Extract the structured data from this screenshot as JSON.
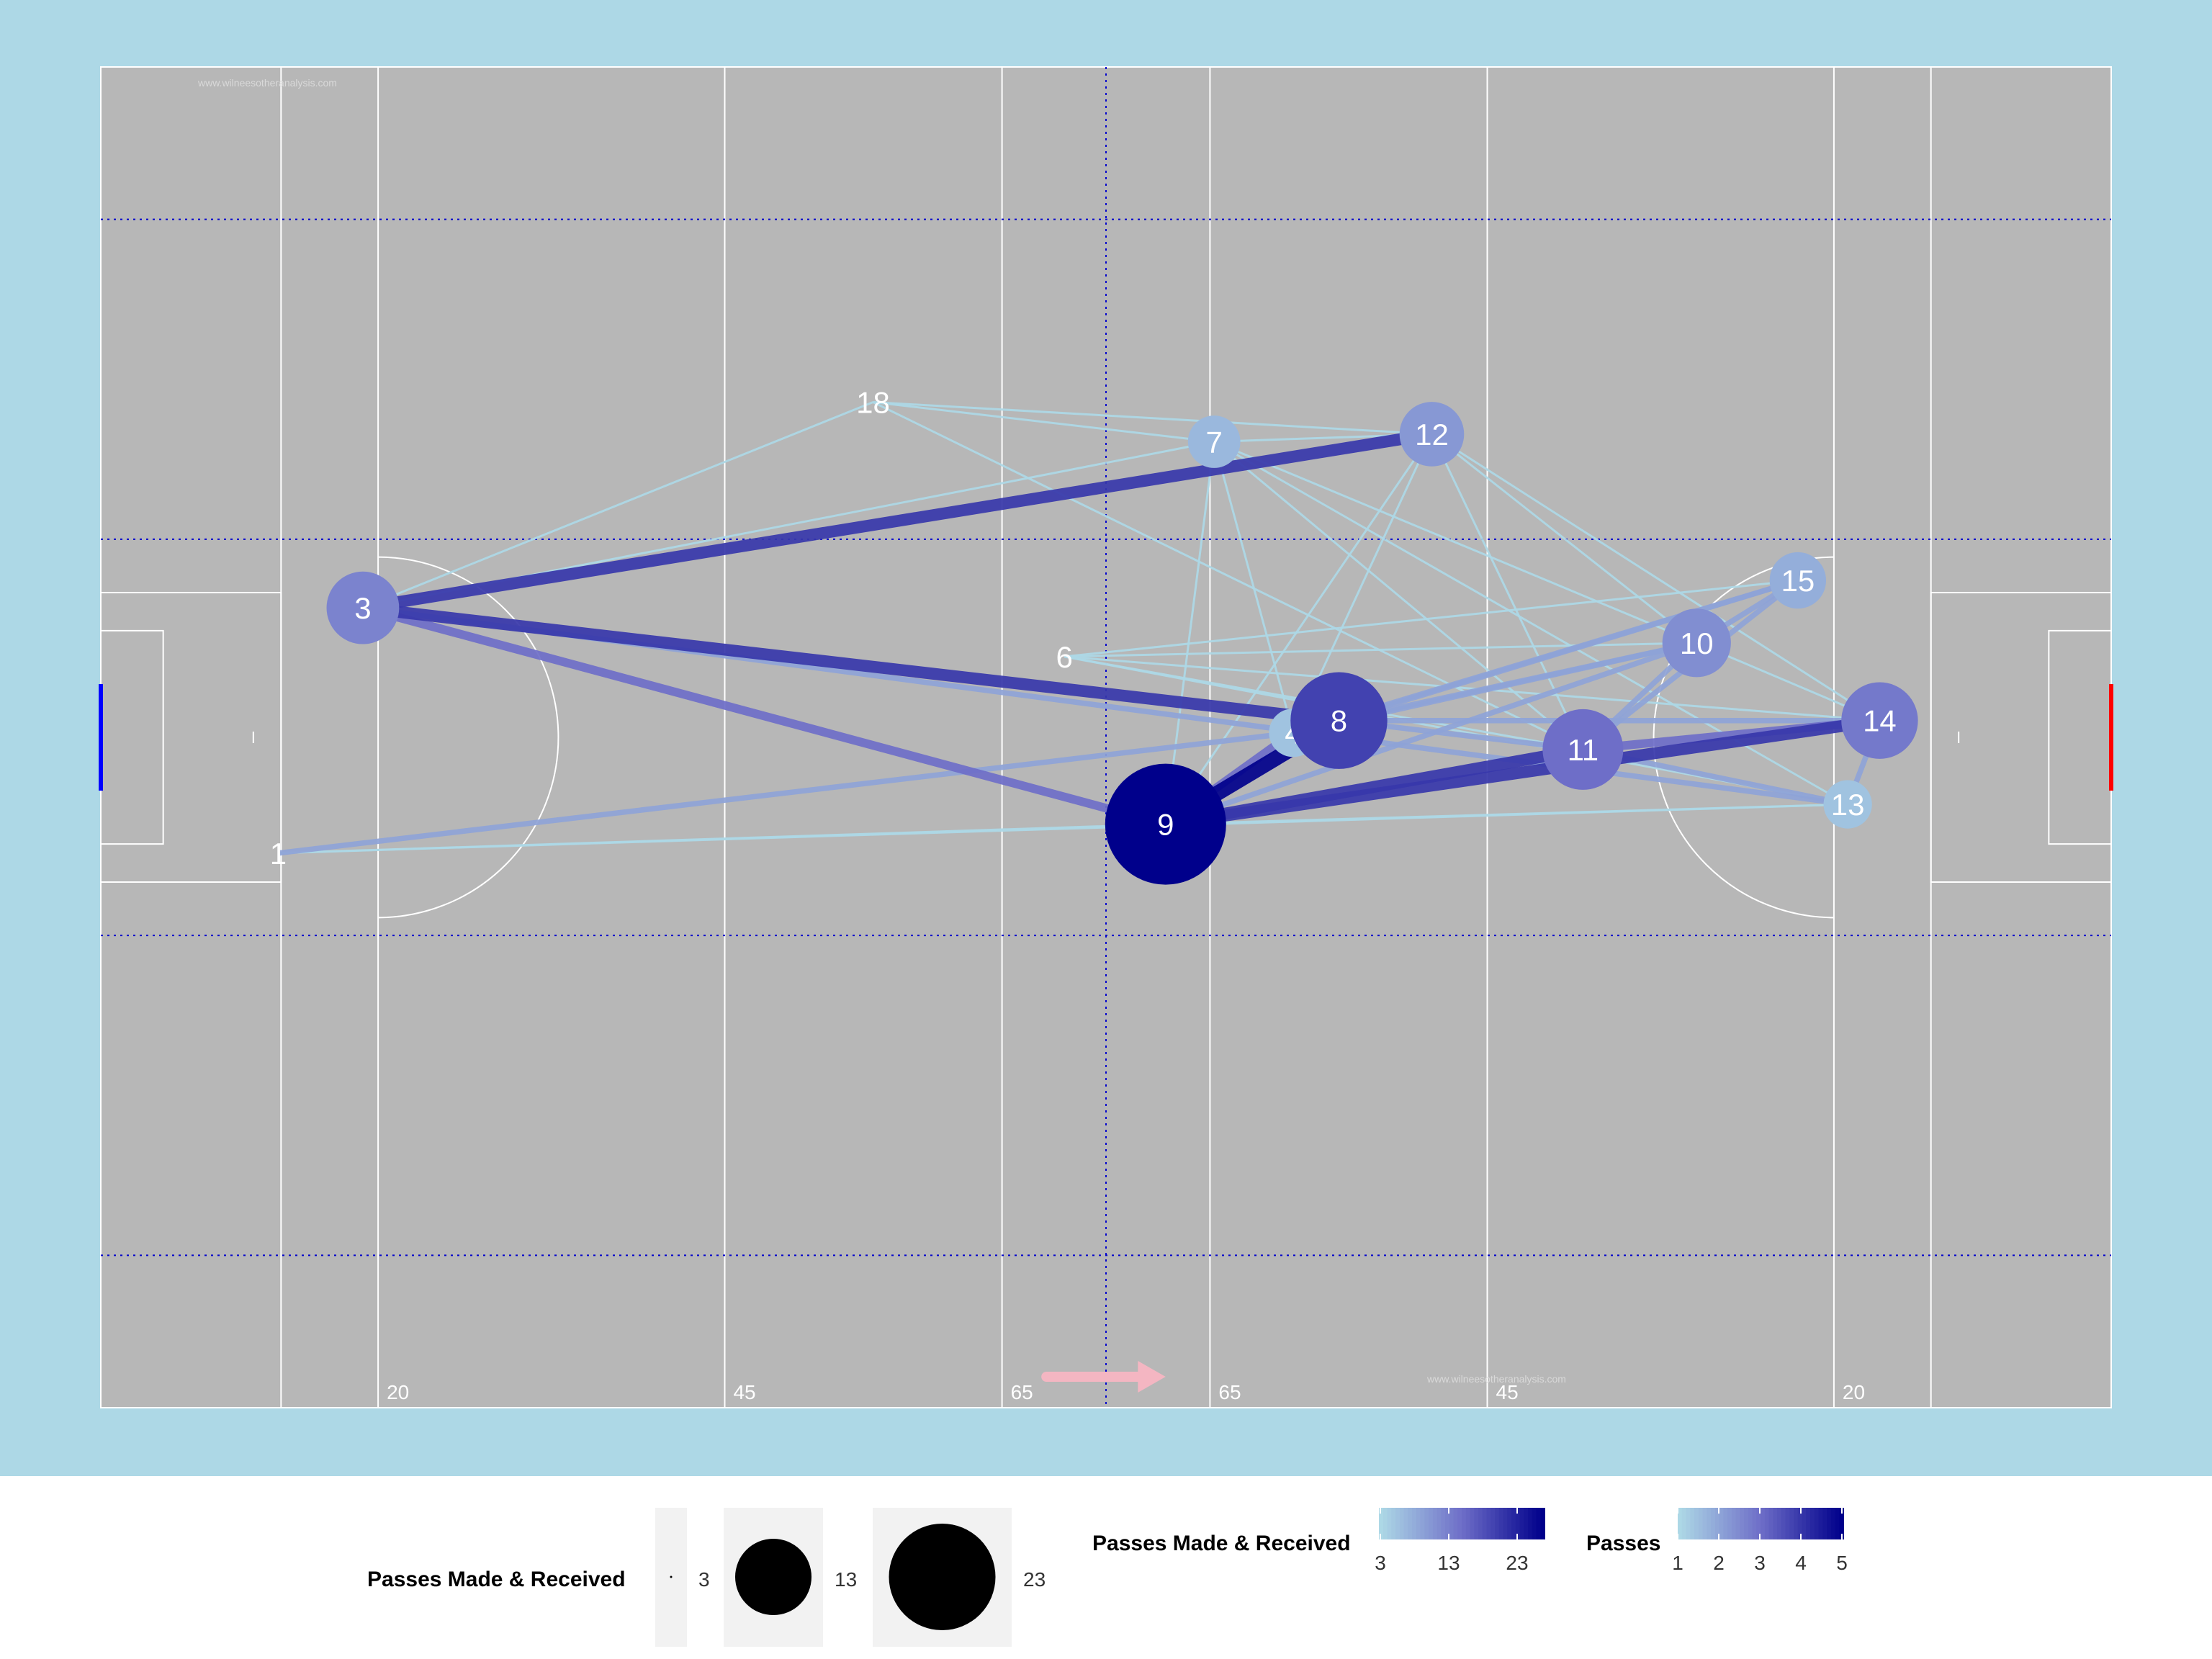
{
  "chart_data": {
    "type": "network",
    "pitch": {
      "xlim": [
        0,
        145
      ],
      "ylim": [
        0,
        88
      ],
      "background_color": "#add8e6",
      "surface_color": "#b7b7b7",
      "line_color": "#ffffff",
      "quarter_line_color": "#0000cd",
      "left_goal_color": "#0000ff",
      "right_goal_color": "#ff0000",
      "distance_markers": [
        "20",
        "45",
        "65",
        "65",
        "45",
        "20"
      ],
      "watermarks": [
        "www.wilneesotheranalysis.com",
        "www.wilneesotheranalysis.com"
      ],
      "direction_arrow_color": "#f4b6c2"
    },
    "players": [
      {
        "id": "1",
        "x": 12.8,
        "y": 36.4,
        "passes_made_received": 2,
        "show_circle": false
      },
      {
        "id": "3",
        "x": 18.9,
        "y": 52.5,
        "passes_made_received": 11,
        "show_circle": true
      },
      {
        "id": "4",
        "x": 86.0,
        "y": 44.3,
        "passes_made_received": 5,
        "show_circle": true
      },
      {
        "id": "6",
        "x": 69.5,
        "y": 49.3,
        "passes_made_received": 2,
        "show_circle": false
      },
      {
        "id": "7",
        "x": 80.3,
        "y": 63.4,
        "passes_made_received": 6,
        "show_circle": true
      },
      {
        "id": "8",
        "x": 89.3,
        "y": 45.1,
        "passes_made_received": 17,
        "show_circle": true
      },
      {
        "id": "9",
        "x": 76.8,
        "y": 38.3,
        "passes_made_received": 23,
        "show_circle": true
      },
      {
        "id": "10",
        "x": 115.1,
        "y": 50.2,
        "passes_made_received": 10,
        "show_circle": true
      },
      {
        "id": "11",
        "x": 106.9,
        "y": 43.2,
        "passes_made_received": 13,
        "show_circle": true
      },
      {
        "id": "12",
        "x": 96.0,
        "y": 63.9,
        "passes_made_received": 9,
        "show_circle": true
      },
      {
        "id": "13",
        "x": 126.0,
        "y": 39.6,
        "passes_made_received": 5,
        "show_circle": true
      },
      {
        "id": "14",
        "x": 128.3,
        "y": 45.1,
        "passes_made_received": 12,
        "show_circle": true
      },
      {
        "id": "15",
        "x": 122.4,
        "y": 54.3,
        "passes_made_received": 7,
        "show_circle": true
      },
      {
        "id": "18",
        "x": 55.7,
        "y": 66.0,
        "passes_made_received": 2,
        "show_circle": false
      }
    ],
    "passes": [
      {
        "from": "3",
        "to": "12",
        "count": 4
      },
      {
        "from": "3",
        "to": "8",
        "count": 4
      },
      {
        "from": "3",
        "to": "9",
        "count": 3
      },
      {
        "from": "3",
        "to": "7",
        "count": 1
      },
      {
        "from": "3",
        "to": "13",
        "count": 2
      },
      {
        "from": "9",
        "to": "8",
        "count": 5
      },
      {
        "from": "9",
        "to": "4",
        "count": 3
      },
      {
        "from": "9",
        "to": "14",
        "count": 4
      },
      {
        "from": "9",
        "to": "11",
        "count": 4
      },
      {
        "from": "9",
        "to": "10",
        "count": 2
      },
      {
        "from": "9",
        "to": "12",
        "count": 1
      },
      {
        "from": "9",
        "to": "7",
        "count": 1
      },
      {
        "from": "9",
        "to": "13",
        "count": 1
      },
      {
        "from": "1",
        "to": "4",
        "count": 2
      },
      {
        "from": "1",
        "to": "9",
        "count": 1
      },
      {
        "from": "1",
        "to": "13",
        "count": 1
      },
      {
        "from": "8",
        "to": "10",
        "count": 2
      },
      {
        "from": "8",
        "to": "15",
        "count": 2
      },
      {
        "from": "8",
        "to": "14",
        "count": 2
      },
      {
        "from": "8",
        "to": "11",
        "count": 2
      },
      {
        "from": "4",
        "to": "15",
        "count": 2
      },
      {
        "from": "4",
        "to": "10",
        "count": 2
      },
      {
        "from": "11",
        "to": "14",
        "count": 3
      },
      {
        "from": "11",
        "to": "13",
        "count": 2
      },
      {
        "from": "11",
        "to": "10",
        "count": 2
      },
      {
        "from": "11",
        "to": "15",
        "count": 2
      },
      {
        "from": "11",
        "to": "7",
        "count": 1
      },
      {
        "from": "11",
        "to": "12",
        "count": 1
      },
      {
        "from": "10",
        "to": "15",
        "count": 2
      },
      {
        "from": "14",
        "to": "13",
        "count": 2
      },
      {
        "from": "14",
        "to": "10",
        "count": 1
      },
      {
        "from": "14",
        "to": "12",
        "count": 1
      },
      {
        "from": "14",
        "to": "6",
        "count": 1
      },
      {
        "from": "15",
        "to": "6",
        "count": 1
      },
      {
        "from": "10",
        "to": "6",
        "count": 1
      },
      {
        "from": "10",
        "to": "12",
        "count": 1
      },
      {
        "from": "10",
        "to": "7",
        "count": 1
      },
      {
        "from": "12",
        "to": "7",
        "count": 1
      },
      {
        "from": "12",
        "to": "18",
        "count": 1
      },
      {
        "from": "12",
        "to": "4",
        "count": 1
      },
      {
        "from": "7",
        "to": "18",
        "count": 1
      },
      {
        "from": "18",
        "to": "3",
        "count": 1
      },
      {
        "from": "18",
        "to": "11",
        "count": 1
      },
      {
        "from": "6",
        "to": "13",
        "count": 1
      },
      {
        "from": "6",
        "to": "11",
        "count": 1
      },
      {
        "from": "7",
        "to": "13",
        "count": 1
      },
      {
        "from": "7",
        "to": "4",
        "count": 1
      }
    ],
    "legend": {
      "size_title": "Passes Made & Received",
      "size_breaks": [
        "3",
        "13",
        "23"
      ],
      "size_values": [
        3,
        13,
        23
      ],
      "color_title": "Passes Made & Received",
      "color_breaks": [
        "3",
        "13",
        "23"
      ],
      "color_range": [
        3,
        23
      ],
      "edge_title": "Passes",
      "edge_breaks": [
        "1",
        "2",
        "3",
        "4",
        "5"
      ],
      "edge_range": [
        1,
        5
      ],
      "low_color": "#add8e6",
      "high_color": "#00008b",
      "position": "bottom"
    }
  }
}
